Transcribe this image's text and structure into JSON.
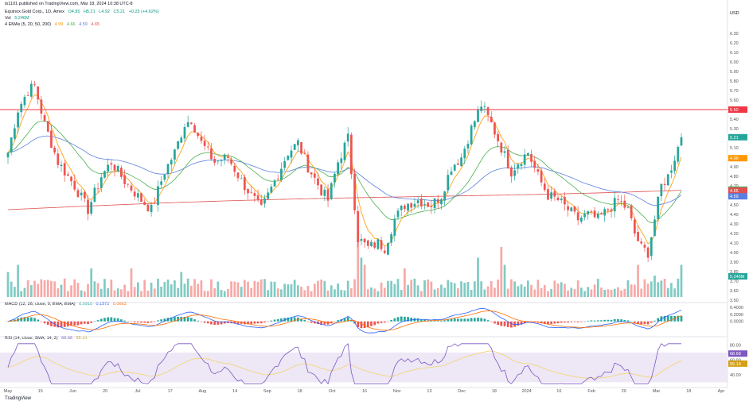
{
  "publish_line": "ts1101 published on TradingView.com, Mar 18, 2024 10:38 UTC-8",
  "brand": "TradingView",
  "currency": "USD",
  "symbol_line": {
    "name": "Equinox Gold Corp., 1D, Amex",
    "o": "O4.95",
    "h": "H5.21",
    "l": "L4.92",
    "c": "C5.21",
    "chg": "+0.23 (+4.62%)"
  },
  "vol_line": {
    "label": "Vol",
    "value": "5.246M"
  },
  "ema_line": {
    "label": "4 EMAs (5, 20, 50, 200)",
    "v1": "4.99",
    "v2": "4.66",
    "v3": "4.59",
    "v4": "4.65"
  },
  "macd_line": {
    "label": "MACD (12, 26, close, 9, EMA, EMA)",
    "v1": "0.0910",
    "v2": "0.1572",
    "v3": "0.0663"
  },
  "rsi_line": {
    "label": "RSI (14, close, SMA, 14, 2)",
    "v1": "68.68",
    "v2": "55.14"
  },
  "colors": {
    "up": "#26a69a",
    "down": "#ef5350",
    "vol_up": "#80cbc4",
    "vol_down": "#f7a9a7",
    "ema5": "#ff9800",
    "ema20": "#4caf50",
    "ema50": "#5b7fe0",
    "ema200": "#e05050",
    "hline": "#f23645",
    "macd": "#2962ff",
    "signal": "#ff6d00",
    "rsi": "#7e57c2",
    "rsi_ma": "#f5d46a",
    "rsi_band": "#ede7f6"
  },
  "chart_data": {
    "type": "candlestick",
    "price_axis": {
      "min": 3.5,
      "max": 6.4,
      "ticks": [
        "6.30",
        "6.20",
        "6.10",
        "6.00",
        "5.90",
        "5.80",
        "5.70",
        "5.60",
        "5.50",
        "5.40",
        "5.30",
        "5.20",
        "5.10",
        "5.00",
        "4.90",
        "4.80",
        "4.70",
        "4.60",
        "4.50",
        "4.40",
        "4.30",
        "4.20",
        "4.10",
        "4.00",
        "3.90",
        "3.80",
        "3.70",
        "3.60",
        "3.50"
      ]
    },
    "x_axis": {
      "labels": [
        "May",
        "15",
        "Jun",
        "20",
        "Jul",
        "17",
        "Aug",
        "14",
        "Sep",
        "18",
        "Oct",
        "16",
        "Nov",
        "13",
        "Dec",
        "18",
        "2024",
        "16",
        "Feb",
        "20",
        "Mar",
        "18",
        "Apr"
      ]
    },
    "horizontal_line": {
      "value": 5.5,
      "label": "5.50"
    },
    "price_badges": [
      {
        "value": 5.21,
        "label": "5.21",
        "color": "#26a69a"
      },
      {
        "value": 4.99,
        "label": "4.99",
        "color": "#ff9800"
      },
      {
        "value": 4.66,
        "label": "4.66",
        "color": "#4caf50"
      },
      {
        "value": 4.65,
        "label": "4.65",
        "color": "#e05050"
      },
      {
        "value": 4.59,
        "label": "4.59",
        "color": "#5b7fe0"
      },
      {
        "value": 3.75,
        "label": "5.246M",
        "color": "#26a69a"
      }
    ],
    "anchors": [
      [
        0,
        5.05
      ],
      [
        3,
        5.5
      ],
      [
        6,
        5.7
      ],
      [
        8,
        5.75
      ],
      [
        11,
        5.35
      ],
      [
        15,
        4.95
      ],
      [
        20,
        4.7
      ],
      [
        24,
        4.45
      ],
      [
        28,
        4.8
      ],
      [
        31,
        4.95
      ],
      [
        35,
        4.75
      ],
      [
        40,
        4.55
      ],
      [
        43,
        4.45
      ],
      [
        47,
        4.85
      ],
      [
        50,
        5.05
      ],
      [
        53,
        5.35
      ],
      [
        55,
        5.4
      ],
      [
        58,
        5.15
      ],
      [
        62,
        4.95
      ],
      [
        66,
        5.0
      ],
      [
        70,
        4.75
      ],
      [
        74,
        4.55
      ],
      [
        76,
        4.45
      ],
      [
        80,
        4.75
      ],
      [
        84,
        5.05
      ],
      [
        87,
        5.15
      ],
      [
        90,
        4.9
      ],
      [
        94,
        4.65
      ],
      [
        96,
        4.55
      ],
      [
        99,
        4.95
      ],
      [
        102,
        5.2
      ],
      [
        105,
        4.15
      ],
      [
        108,
        4.05
      ],
      [
        111,
        4.1
      ],
      [
        113,
        4.05
      ],
      [
        116,
        4.35
      ],
      [
        119,
        4.5
      ],
      [
        123,
        4.55
      ],
      [
        127,
        4.5
      ],
      [
        130,
        4.6
      ],
      [
        133,
        4.9
      ],
      [
        136,
        5.0
      ],
      [
        139,
        5.3
      ],
      [
        142,
        5.55
      ],
      [
        145,
        5.35
      ],
      [
        148,
        5.1
      ],
      [
        151,
        4.85
      ],
      [
        153,
        4.95
      ],
      [
        156,
        5.05
      ],
      [
        159,
        4.8
      ],
      [
        162,
        4.6
      ],
      [
        165,
        4.55
      ],
      [
        168,
        4.45
      ],
      [
        171,
        4.35
      ],
      [
        174,
        4.4
      ],
      [
        177,
        4.35
      ],
      [
        180,
        4.45
      ],
      [
        183,
        4.55
      ],
      [
        186,
        4.45
      ],
      [
        188,
        4.2
      ],
      [
        190,
        4.05
      ],
      [
        192,
        4.0
      ],
      [
        194,
        4.35
      ],
      [
        196,
        4.7
      ],
      [
        198,
        4.8
      ],
      [
        200,
        5.0
      ],
      [
        202,
        5.21
      ]
    ],
    "volume_spikes": [
      [
        0,
        0.35
      ],
      [
        3,
        0.45
      ],
      [
        25,
        0.4
      ],
      [
        37,
        0.4
      ],
      [
        52,
        0.35
      ],
      [
        105,
        1.0
      ],
      [
        106,
        0.55
      ],
      [
        107,
        0.45
      ],
      [
        119,
        0.4
      ],
      [
        141,
        0.55
      ],
      [
        148,
        0.7
      ],
      [
        149,
        0.45
      ],
      [
        189,
        0.45
      ],
      [
        194,
        0.3
      ],
      [
        202,
        0.45
      ]
    ],
    "volume_axis": {
      "max_label": "",
      "scale": [
        0,
        1
      ]
    },
    "macd_axis": {
      "ticks": [
        "0.4000",
        "0.2000",
        "0.0000"
      ],
      "min": -0.3,
      "max": 0.4
    },
    "rsi_axis": {
      "ticks": [
        "80.00",
        "60.00",
        "40.00"
      ],
      "min": 25,
      "max": 85,
      "band": [
        30,
        70
      ]
    }
  }
}
